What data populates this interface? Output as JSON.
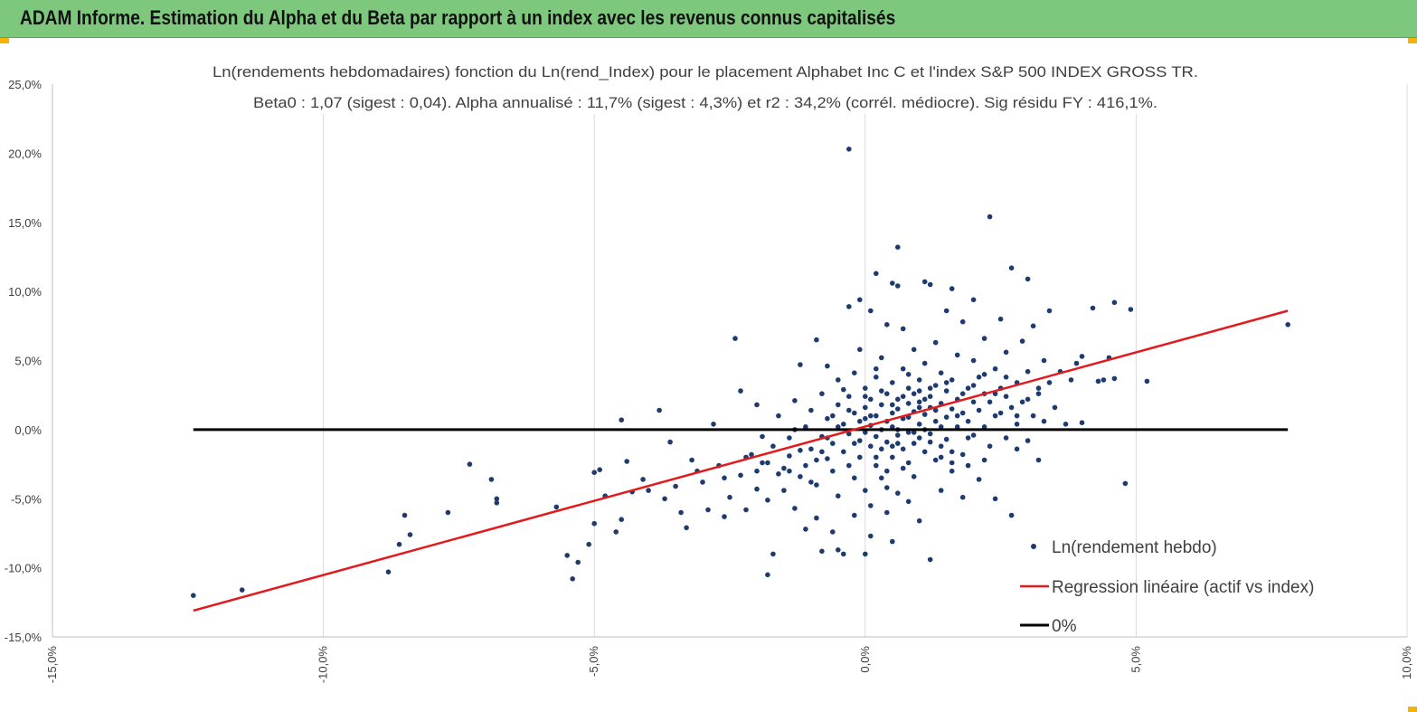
{
  "header": {
    "title": "ADAM Informe. Estimation du Alpha et du Beta par rapport à un index avec les revenus connus capitalisés"
  },
  "colors": {
    "banner": "#7ec87d",
    "points": "#1f3b6e",
    "regression": "#e31a1c",
    "zero_line": "#000000",
    "accent": "#f4b400"
  },
  "chart_data": {
    "type": "scatter",
    "title_line1": "Ln(rendements hebdomadaires) fonction du Ln(rend_Index) pour le placement Alphabet Inc C et l'index S&P 500 INDEX GROSS TR.",
    "title_line2": "Beta0 : 1,07  (sigest : 0,04).  Alpha annualisé : 11,7% (sigest : 4,3%) et r2 : 34,2% (corrél. médiocre). Sig résidu FY : 416,1%.",
    "xlabel": "",
    "ylabel": "",
    "xlim": [
      -15,
      10
    ],
    "ylim": [
      -15,
      25
    ],
    "x_ticks": [
      -15,
      -10,
      -5,
      0,
      5,
      10
    ],
    "y_ticks": [
      -15,
      -10,
      -5,
      0,
      5,
      10,
      15,
      20,
      25
    ],
    "x_tick_labels": [
      "-15,0%",
      "-10,0%",
      "-5,0%",
      "0,0%",
      "5,0%",
      "10,0%"
    ],
    "y_tick_labels": [
      "-15,0%",
      "-10,0%",
      "-5,0%",
      "0,0%",
      "5,0%",
      "10,0%",
      "15,0%",
      "20,0%",
      "25,0%"
    ],
    "grid": {
      "x": true,
      "y": false
    },
    "legend_position": "bottom-right",
    "series": [
      {
        "name": "Ln(rendement hebdo)",
        "kind": "scatter",
        "points": [
          [
            -12.4,
            -12.0
          ],
          [
            -11.5,
            -11.6
          ],
          [
            -8.8,
            -10.3
          ],
          [
            -8.6,
            -8.3
          ],
          [
            -8.5,
            -6.2
          ],
          [
            -8.4,
            -7.6
          ],
          [
            -7.7,
            -6.0
          ],
          [
            -7.3,
            -2.5
          ],
          [
            -6.9,
            -3.6
          ],
          [
            -6.8,
            -5.3
          ],
          [
            -6.8,
            -5.0
          ],
          [
            -5.7,
            -5.6
          ],
          [
            -5.5,
            -9.1
          ],
          [
            -5.4,
            -10.8
          ],
          [
            -5.3,
            -9.6
          ],
          [
            -5.1,
            -8.3
          ],
          [
            -5.0,
            -6.8
          ],
          [
            -5.0,
            -3.1
          ],
          [
            -4.9,
            -2.9
          ],
          [
            -4.8,
            -4.8
          ],
          [
            -4.6,
            -7.4
          ],
          [
            -4.5,
            0.7
          ],
          [
            -4.5,
            -6.5
          ],
          [
            -4.4,
            -2.3
          ],
          [
            -4.3,
            -4.5
          ],
          [
            -4.1,
            -3.6
          ],
          [
            -4.0,
            -4.4
          ],
          [
            -3.8,
            1.4
          ],
          [
            -3.7,
            -5.0
          ],
          [
            -3.6,
            -0.9
          ],
          [
            -3.5,
            -4.1
          ],
          [
            -3.4,
            -6.0
          ],
          [
            -3.3,
            -7.1
          ],
          [
            -3.1,
            -3.0
          ],
          [
            -3.0,
            -3.8
          ],
          [
            -2.9,
            -5.8
          ],
          [
            -2.8,
            0.4
          ],
          [
            -2.7,
            -2.6
          ],
          [
            -2.6,
            -6.3
          ],
          [
            -2.5,
            -4.9
          ],
          [
            -2.4,
            6.6
          ],
          [
            -2.3,
            -3.3
          ],
          [
            -2.3,
            2.8
          ],
          [
            -2.2,
            -5.8
          ],
          [
            -2.1,
            -1.8
          ],
          [
            -2.0,
            1.8
          ],
          [
            -2.0,
            -4.3
          ],
          [
            -1.9,
            -2.4
          ],
          [
            -1.8,
            -10.5
          ],
          [
            -1.8,
            -5.1
          ],
          [
            -1.7,
            -9.0
          ],
          [
            -1.7,
            -1.2
          ],
          [
            -1.6,
            -3.2
          ],
          [
            -1.6,
            1.0
          ],
          [
            -1.5,
            -4.4
          ],
          [
            -1.4,
            -1.9
          ],
          [
            -1.4,
            -0.6
          ],
          [
            -1.3,
            -5.7
          ],
          [
            -1.3,
            2.1
          ],
          [
            -1.2,
            -3.4
          ],
          [
            -1.2,
            4.7
          ],
          [
            -1.1,
            -2.6
          ],
          [
            -1.1,
            0.2
          ],
          [
            -1.1,
            -7.2
          ],
          [
            -1.0,
            -1.4
          ],
          [
            -1.0,
            1.4
          ],
          [
            -0.9,
            6.5
          ],
          [
            -0.9,
            -4.0
          ],
          [
            -0.9,
            -6.4
          ],
          [
            -0.8,
            -8.8
          ],
          [
            -0.8,
            -0.5
          ],
          [
            -0.8,
            2.6
          ],
          [
            -0.7,
            -2.1
          ],
          [
            -0.7,
            0.8
          ],
          [
            -0.7,
            4.6
          ],
          [
            -0.6,
            -3.0
          ],
          [
            -0.6,
            -1.0
          ],
          [
            -0.6,
            -7.4
          ],
          [
            -0.5,
            1.8
          ],
          [
            -0.5,
            -4.8
          ],
          [
            -0.5,
            -8.7
          ],
          [
            -0.5,
            3.6
          ],
          [
            -0.4,
            -1.6
          ],
          [
            -0.4,
            0.4
          ],
          [
            -0.4,
            -9.0
          ],
          [
            -0.3,
            -2.6
          ],
          [
            -0.3,
            2.4
          ],
          [
            -0.3,
            -0.3
          ],
          [
            -0.3,
            20.3
          ],
          [
            -0.3,
            8.9
          ],
          [
            -0.2,
            -6.2
          ],
          [
            -0.2,
            1.2
          ],
          [
            -0.2,
            -3.5
          ],
          [
            -0.2,
            4.1
          ],
          [
            -0.1,
            -0.8
          ],
          [
            -0.1,
            0.6
          ],
          [
            -0.1,
            -2.0
          ],
          [
            -0.1,
            9.4
          ],
          [
            -0.1,
            5.8
          ],
          [
            0.0,
            -9.0
          ],
          [
            0.0,
            -0.2
          ],
          [
            0.0,
            1.6
          ],
          [
            0.0,
            -4.4
          ],
          [
            0.0,
            3.0
          ],
          [
            0.1,
            0.3
          ],
          [
            0.1,
            -1.2
          ],
          [
            0.1,
            2.2
          ],
          [
            0.1,
            -7.7
          ],
          [
            0.1,
            8.6
          ],
          [
            0.1,
            -5.5
          ],
          [
            0.2,
            -0.5
          ],
          [
            0.2,
            1.0
          ],
          [
            0.2,
            11.3
          ],
          [
            0.2,
            -2.6
          ],
          [
            0.2,
            3.8
          ],
          [
            0.3,
            0.0
          ],
          [
            0.3,
            1.8
          ],
          [
            0.3,
            -3.5
          ],
          [
            0.3,
            -1.4
          ],
          [
            0.3,
            5.2
          ],
          [
            0.4,
            0.6
          ],
          [
            0.4,
            -0.9
          ],
          [
            0.4,
            2.6
          ],
          [
            0.4,
            -6.0
          ],
          [
            0.4,
            7.6
          ],
          [
            0.5,
            1.2
          ],
          [
            0.5,
            -2.0
          ],
          [
            0.5,
            0.2
          ],
          [
            0.5,
            -8.1
          ],
          [
            0.5,
            3.4
          ],
          [
            0.5,
            10.6
          ],
          [
            0.6,
            -0.4
          ],
          [
            0.6,
            1.5
          ],
          [
            0.6,
            -4.6
          ],
          [
            0.6,
            13.2
          ],
          [
            0.6,
            2.2
          ],
          [
            0.6,
            10.4
          ],
          [
            0.7,
            0.8
          ],
          [
            0.7,
            -1.4
          ],
          [
            0.7,
            4.4
          ],
          [
            0.7,
            -2.8
          ],
          [
            0.7,
            7.3
          ],
          [
            0.8,
            1.9
          ],
          [
            0.8,
            -0.2
          ],
          [
            0.8,
            -5.2
          ],
          [
            0.8,
            3.0
          ],
          [
            0.8,
            0.9
          ],
          [
            0.9,
            -1.0
          ],
          [
            0.9,
            2.6
          ],
          [
            0.9,
            5.8
          ],
          [
            0.9,
            -3.4
          ],
          [
            0.9,
            1.3
          ],
          [
            1.0,
            -0.6
          ],
          [
            1.0,
            3.6
          ],
          [
            1.0,
            0.4
          ],
          [
            1.0,
            -6.6
          ],
          [
            1.0,
            2.0
          ],
          [
            1.1,
            10.7
          ],
          [
            1.1,
            -1.6
          ],
          [
            1.1,
            1.1
          ],
          [
            1.1,
            4.8
          ],
          [
            1.2,
            -0.3
          ],
          [
            1.2,
            2.4
          ],
          [
            1.2,
            -9.4
          ],
          [
            1.2,
            10.5
          ],
          [
            1.2,
            1.6
          ],
          [
            1.3,
            -2.2
          ],
          [
            1.3,
            3.2
          ],
          [
            1.3,
            0.6
          ],
          [
            1.3,
            6.3
          ],
          [
            1.4,
            1.9
          ],
          [
            1.4,
            -1.2
          ],
          [
            1.4,
            4.1
          ],
          [
            1.4,
            -4.4
          ],
          [
            1.5,
            0.9
          ],
          [
            1.5,
            2.8
          ],
          [
            1.5,
            -0.7
          ],
          [
            1.5,
            8.6
          ],
          [
            1.6,
            1.5
          ],
          [
            1.6,
            3.6
          ],
          [
            1.6,
            10.2
          ],
          [
            1.6,
            -3.0
          ],
          [
            1.7,
            0.2
          ],
          [
            1.7,
            2.2
          ],
          [
            1.7,
            5.4
          ],
          [
            1.8,
            -1.8
          ],
          [
            1.8,
            1.2
          ],
          [
            1.8,
            -4.9
          ],
          [
            1.8,
            7.8
          ],
          [
            1.9,
            3.0
          ],
          [
            1.9,
            0.6
          ],
          [
            1.9,
            -2.6
          ],
          [
            2.0,
            2.0
          ],
          [
            2.0,
            5.0
          ],
          [
            2.0,
            -0.4
          ],
          [
            2.0,
            9.4
          ],
          [
            2.1,
            1.4
          ],
          [
            2.1,
            3.8
          ],
          [
            2.1,
            -3.6
          ],
          [
            2.2,
            2.6
          ],
          [
            2.2,
            0.2
          ],
          [
            2.2,
            6.6
          ],
          [
            2.3,
            15.4
          ],
          [
            2.3,
            -1.2
          ],
          [
            2.3,
            2.0
          ],
          [
            2.4,
            4.4
          ],
          [
            2.4,
            -5.0
          ],
          [
            2.5,
            1.2
          ],
          [
            2.5,
            3.0
          ],
          [
            2.5,
            8.0
          ],
          [
            2.6,
            -0.6
          ],
          [
            2.6,
            2.4
          ],
          [
            2.6,
            5.6
          ],
          [
            2.7,
            11.7
          ],
          [
            2.7,
            -6.2
          ],
          [
            2.7,
            1.6
          ],
          [
            2.8,
            3.4
          ],
          [
            2.8,
            0.4
          ],
          [
            2.9,
            6.4
          ],
          [
            2.9,
            2.0
          ],
          [
            3.0,
            -0.8
          ],
          [
            3.0,
            10.9
          ],
          [
            3.0,
            4.2
          ],
          [
            3.1,
            1.0
          ],
          [
            3.1,
            7.5
          ],
          [
            3.2,
            2.6
          ],
          [
            3.2,
            -2.2
          ],
          [
            3.3,
            5.0
          ],
          [
            3.3,
            0.6
          ],
          [
            3.4,
            8.6
          ],
          [
            3.4,
            3.4
          ],
          [
            3.5,
            1.6
          ],
          [
            3.6,
            4.2
          ],
          [
            3.7,
            0.4
          ],
          [
            3.8,
            3.6
          ],
          [
            3.9,
            4.8
          ],
          [
            4.0,
            5.3
          ],
          [
            4.0,
            0.5
          ],
          [
            4.2,
            8.8
          ],
          [
            4.3,
            3.5
          ],
          [
            4.4,
            3.6
          ],
          [
            4.5,
            5.2
          ],
          [
            4.6,
            9.2
          ],
          [
            4.6,
            3.7
          ],
          [
            4.8,
            -3.9
          ],
          [
            4.9,
            8.7
          ],
          [
            5.2,
            3.5
          ],
          [
            7.8,
            7.6
          ],
          [
            -2.6,
            -3.5
          ],
          [
            -2.2,
            -2.0
          ],
          [
            -1.9,
            -0.5
          ],
          [
            -1.5,
            -2.8
          ],
          [
            -1.2,
            -1.5
          ],
          [
            -0.9,
            -2.2
          ],
          [
            -0.6,
            1.0
          ],
          [
            -0.4,
            2.9
          ],
          [
            -0.2,
            -1.0
          ],
          [
            0.0,
            2.4
          ],
          [
            0.2,
            4.4
          ],
          [
            0.4,
            -3.0
          ],
          [
            0.6,
            0.0
          ],
          [
            0.8,
            4.0
          ],
          [
            1.0,
            2.8
          ],
          [
            1.2,
            -0.9
          ],
          [
            1.4,
            0.2
          ],
          [
            1.6,
            -1.6
          ],
          [
            1.8,
            2.6
          ],
          [
            2.0,
            3.2
          ],
          [
            2.2,
            -2.2
          ],
          [
            2.4,
            1.0
          ],
          [
            2.6,
            3.8
          ],
          [
            2.8,
            -1.4
          ],
          [
            3.0,
            2.2
          ],
          [
            -1.3,
            0.0
          ],
          [
            -0.7,
            -0.6
          ],
          [
            0.3,
            2.8
          ],
          [
            0.9,
            -0.2
          ],
          [
            1.5,
            3.4
          ],
          [
            0.5,
            1.8
          ],
          [
            0.7,
            2.4
          ],
          [
            1.1,
            0.0
          ],
          [
            1.3,
            1.4
          ],
          [
            1.7,
            1.0
          ],
          [
            1.9,
            -0.6
          ],
          [
            0.1,
            1.0
          ],
          [
            -0.3,
            1.4
          ],
          [
            0.6,
            -1.0
          ],
          [
            1.0,
            1.6
          ],
          [
            -3.2,
            -2.2
          ],
          [
            -2.0,
            -3.0
          ],
          [
            -1.0,
            -3.8
          ],
          [
            0.4,
            -4.2
          ],
          [
            1.6,
            -2.4
          ],
          [
            2.8,
            1.0
          ],
          [
            3.2,
            3.0
          ],
          [
            -0.8,
            -1.6
          ],
          [
            0.2,
            -2.0
          ],
          [
            1.2,
            3.0
          ],
          [
            2.4,
            2.6
          ],
          [
            0.8,
            -2.4
          ],
          [
            -0.5,
            0.2
          ],
          [
            1.4,
            -2.0
          ],
          [
            2.2,
            4.0
          ],
          [
            -1.8,
            -2.4
          ],
          [
            -1.4,
            -3.0
          ],
          [
            0.0,
            0.8
          ],
          [
            0.5,
            -1.2
          ],
          [
            1.1,
            2.2
          ]
        ]
      },
      {
        "name": "Regression linéaire (actif vs index)",
        "kind": "line",
        "x": [
          -12.4,
          7.8
        ],
        "y": [
          -13.1,
          8.6
        ]
      },
      {
        "name": "0%",
        "kind": "line",
        "x": [
          -12.4,
          7.8
        ],
        "y": [
          0,
          0
        ]
      }
    ]
  }
}
